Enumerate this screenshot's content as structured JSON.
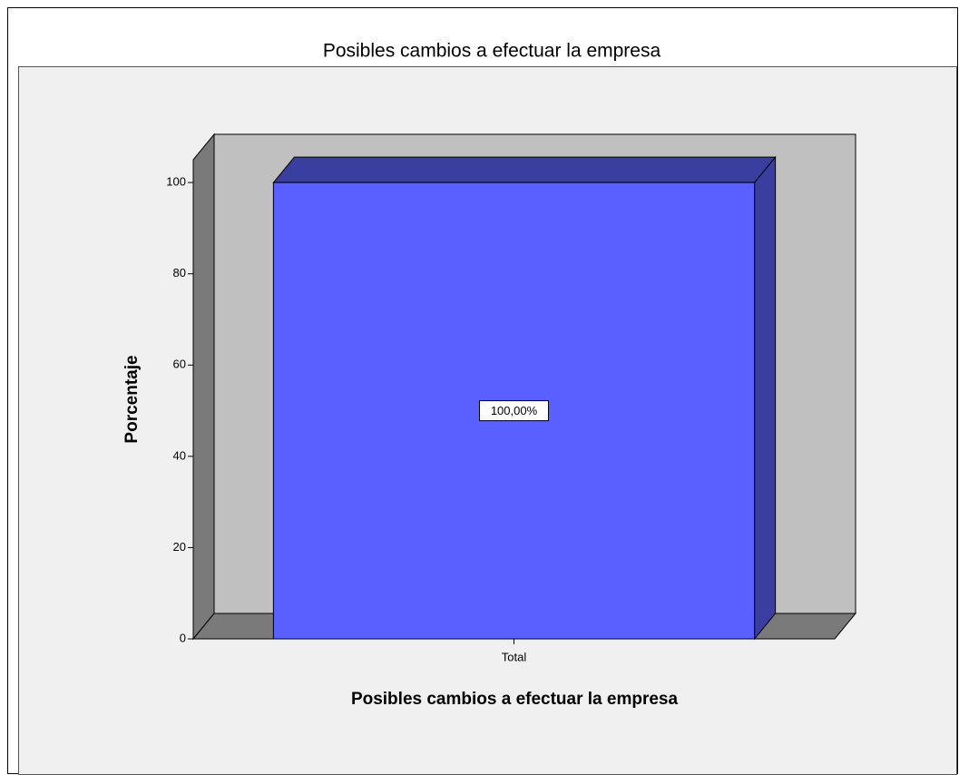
{
  "chart_data": {
    "type": "bar3d",
    "title": "Posibles cambios a efectuar la empresa",
    "xlabel": "Posibles cambios a efectuar la empresa",
    "ylabel": "Porcentaje",
    "categories": [
      "Total"
    ],
    "values": [
      100
    ],
    "value_labels": [
      "100,00%"
    ],
    "color": "#5a5fff",
    "ylim": [
      0,
      105
    ],
    "yticks": [
      0,
      20,
      40,
      60,
      80,
      100
    ]
  }
}
